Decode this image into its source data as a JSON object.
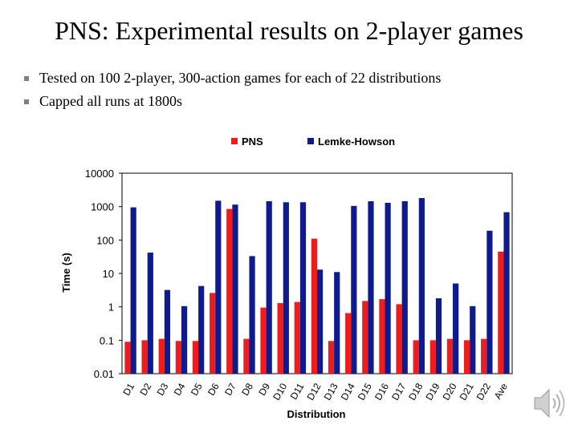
{
  "slide": {
    "title": "PNS: Experimental results on 2-player games",
    "bullets": [
      "Tested on 100  2-player, 300-action games for each of 22 distributions",
      "Capped all runs at 1800s"
    ],
    "bullet_icon": "square-bullet-icon",
    "speaker_icon": "speaker-icon"
  },
  "chart_data": {
    "type": "bar",
    "xlabel": "Distribution",
    "ylabel": "Time (s)",
    "yscale": "log",
    "ylim": [
      0.01,
      10000
    ],
    "yticks": [
      "0.01",
      "0.1",
      "1",
      "10",
      "100",
      "1000",
      "10000"
    ],
    "legend_position": "top-center",
    "categories": [
      "D1",
      "D2",
      "D3",
      "D4",
      "D5",
      "D6",
      "D7",
      "D8",
      "D9",
      "D10",
      "D11",
      "D12",
      "D13",
      "D14",
      "D15",
      "D16",
      "D17",
      "D18",
      "D19",
      "D20",
      "D21",
      "D22",
      "Ave"
    ],
    "series": [
      {
        "name": "PNS",
        "color": "#ee1c1c",
        "values": [
          0.09,
          0.1,
          0.11,
          0.095,
          0.095,
          2.6,
          850,
          0.11,
          0.95,
          1.3,
          1.4,
          110,
          0.095,
          0.65,
          1.5,
          1.7,
          1.2,
          0.1,
          0.1,
          0.11,
          0.1,
          0.11,
          45
        ]
      },
      {
        "name": "Lemke-Howson",
        "color": "#0f1b8c",
        "values": [
          950,
          42,
          3.2,
          1.05,
          4.2,
          1500,
          1150,
          33,
          1450,
          1350,
          1350,
          13,
          11,
          1050,
          1450,
          1300,
          1450,
          1800,
          1.8,
          5,
          1.05,
          190,
          680
        ]
      }
    ]
  }
}
